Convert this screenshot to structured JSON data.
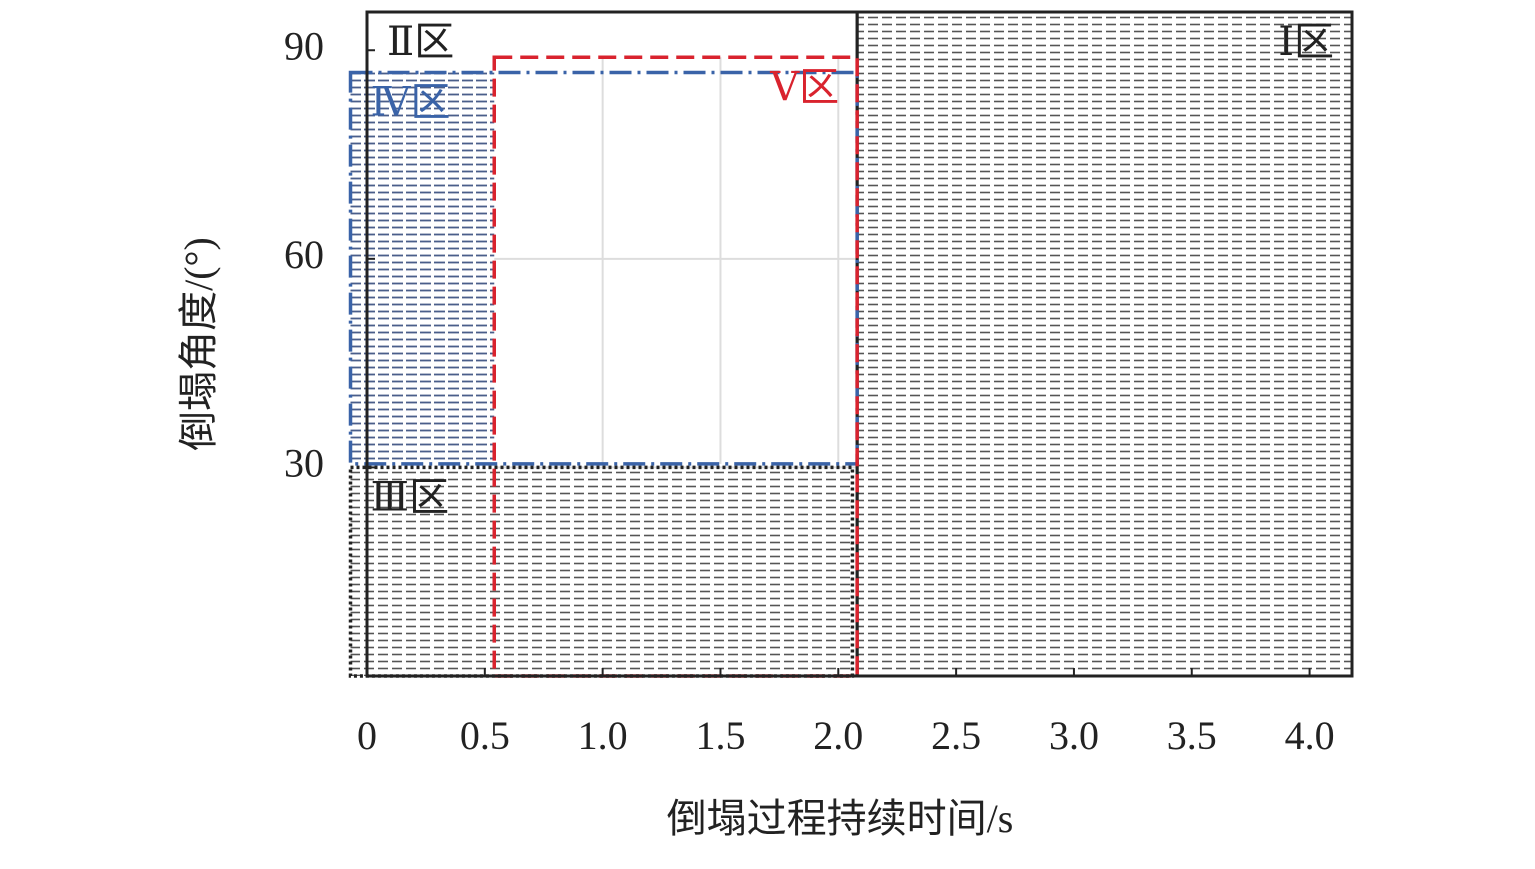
{
  "chart_data": {
    "type": "region",
    "x_label": "倒塌过程持续时间/s",
    "y_label": "倒塌角度/(°)",
    "xlim": [
      0,
      4.18
    ],
    "ylim": [
      0,
      95.5
    ],
    "xticks": [
      0,
      0.5,
      {
        "value": 1,
        "label": "1.0"
      },
      1.5,
      {
        "value": 2,
        "label": "2.0"
      },
      2.5,
      {
        "value": 3,
        "label": "3.0"
      },
      3.5,
      {
        "value": 4,
        "label": "4.0"
      }
    ],
    "yticks": [
      30,
      60,
      90
    ],
    "grid": true,
    "regions": [
      {
        "name": "Ⅰ区",
        "x": [
          2.08,
          4.18
        ],
        "y": [
          0,
          95.5
        ],
        "color": "#222222",
        "line": "solid",
        "fill": "hatch-gray",
        "label_corner": "top-right"
      },
      {
        "name": "Ⅱ区",
        "x": [
          0,
          2.08
        ],
        "y": [
          0,
          95.5
        ],
        "color": "#222222",
        "line": "solid",
        "fill": "none",
        "label_corner": "top-left"
      },
      {
        "name": "Ⅳ区",
        "x": [
          -0.07,
          2.08
        ],
        "y": [
          30.5,
          86.8
        ],
        "color": "#3a63a8",
        "line": "dashdot",
        "fill": "hatch-blue",
        "label_corner": "top-left"
      },
      {
        "name": "Ⅴ区",
        "x": [
          0.54,
          2.08
        ],
        "y": [
          0,
          89
        ],
        "color": "#d9232e",
        "line": "dashed",
        "fill": "white",
        "label_corner": "top-right"
      },
      {
        "name": "Ⅲ区",
        "x": [
          -0.07,
          2.06
        ],
        "y": [
          0,
          30
        ],
        "color": "#222222",
        "line": "dotted",
        "fill": "hatch-gray",
        "label_corner": "top-left"
      }
    ]
  }
}
